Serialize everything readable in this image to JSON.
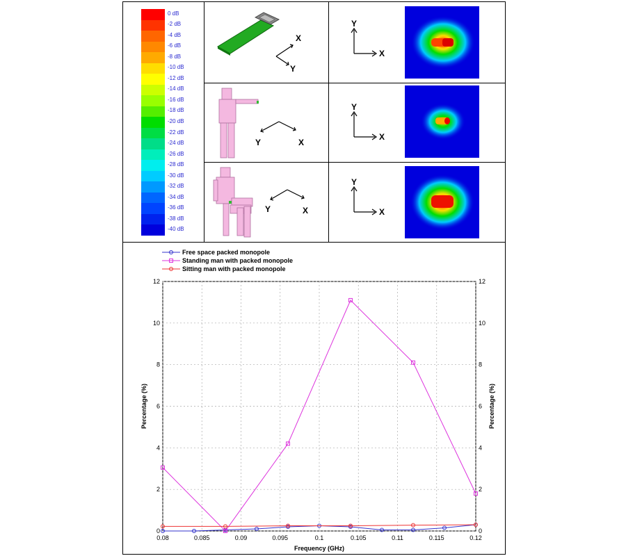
{
  "colorbar": {
    "labels": [
      "0 dB",
      "-2 dB",
      "-4 dB",
      "-6 dB",
      "-8 dB",
      "-10 dB",
      "-12 dB",
      "-14 dB",
      "-16 dB",
      "-18 dB",
      "-20 dB",
      "-22 dB",
      "-24 dB",
      "-26 dB",
      "-28 dB",
      "-30 dB",
      "-32 dB",
      "-34 dB",
      "-36 dB",
      "-38 dB",
      "-40 dB"
    ],
    "colors": [
      "#ff0000",
      "#ff3300",
      "#ff6600",
      "#ff8800",
      "#ffaa00",
      "#ffdd00",
      "#ffff00",
      "#ccff00",
      "#99ff00",
      "#55ee00",
      "#00dd00",
      "#00dd44",
      "#00dd88",
      "#00eebb",
      "#00eeee",
      "#00ccff",
      "#0099ff",
      "#0066ff",
      "#0044ff",
      "#0022ee",
      "#0000dd"
    ]
  },
  "axes_labels": {
    "x": "X",
    "y": "Y"
  },
  "chart_data": {
    "type": "line",
    "xlabel": "Frequency (GHz)",
    "ylabel": "Percentage (%)",
    "ylabel_right": "Percentage (%)",
    "xlim": [
      0.08,
      0.12
    ],
    "ylim": [
      0,
      12
    ],
    "xticks": [
      "0.08",
      "0.085",
      "0.09",
      "0.095",
      "0.1",
      "0.105",
      "0.11",
      "0.115",
      "0.12"
    ],
    "yticks": [
      "0",
      "2",
      "4",
      "6",
      "8",
      "10",
      "12"
    ],
    "grid": true,
    "legend_position": "top-left",
    "series": [
      {
        "name": "Free space packed monopole",
        "color": "#3333cc",
        "marker": "circle",
        "x": [
          0.08,
          0.084,
          0.088,
          0.092,
          0.096,
          0.1,
          0.104,
          0.108,
          0.112,
          0.116,
          0.12
        ],
        "y": [
          0.0,
          0.0,
          0.05,
          0.1,
          0.2,
          0.25,
          0.2,
          0.05,
          0.05,
          0.15,
          0.3
        ]
      },
      {
        "name": "Standing man with packed monopole",
        "color": "#dd33dd",
        "marker": "square",
        "x": [
          0.08,
          0.088,
          0.096,
          0.104,
          0.112,
          0.12
        ],
        "y": [
          3.05,
          0.0,
          4.2,
          11.1,
          8.1,
          1.8
        ]
      },
      {
        "name": "Sitting man with packed monopole",
        "color": "#ee3333",
        "marker": "circle",
        "x": [
          0.08,
          0.088,
          0.096,
          0.104,
          0.112,
          0.12
        ],
        "y": [
          0.22,
          0.22,
          0.25,
          0.25,
          0.28,
          0.3
        ]
      }
    ]
  }
}
